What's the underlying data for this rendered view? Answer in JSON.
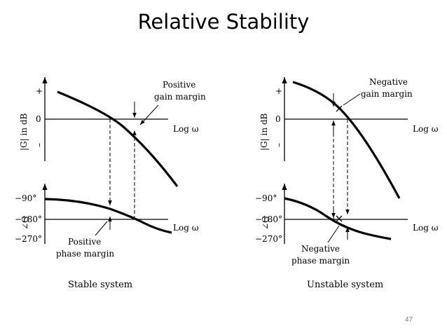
{
  "slide": {
    "title": "Relative Stability",
    "page_number": "47"
  },
  "panels": {
    "stable": {
      "caption": "Stable system",
      "gain_plot": {
        "ylabel": "|G| in dB",
        "tick_plus": "+",
        "tick_zero": "0",
        "tick_minus": "–",
        "xlabel": "Log ω",
        "annotation_line1": "Positive",
        "annotation_line2": "gain margin"
      },
      "phase_plot": {
        "ylabel": "∠G",
        "tick_90": "−90°",
        "tick_180": "−180°",
        "tick_270": "−270°",
        "xlabel": "Log ω",
        "annotation_line1": "Positive",
        "annotation_line2": "phase margin"
      }
    },
    "unstable": {
      "caption": "Unstable system",
      "gain_plot": {
        "ylabel": "|G| in dB",
        "tick_plus": "+",
        "tick_zero": "0",
        "tick_minus": "–",
        "xlabel": "Log ω",
        "annotation_line1": "Negative",
        "annotation_line2": "gain margin"
      },
      "phase_plot": {
        "ylabel": "∠G",
        "tick_90": "−90°",
        "tick_180": "−180°",
        "tick_270": "−270°",
        "xlabel": "Log ω",
        "annotation_line1": "Negative",
        "annotation_line2": "phase margin"
      }
    }
  }
}
